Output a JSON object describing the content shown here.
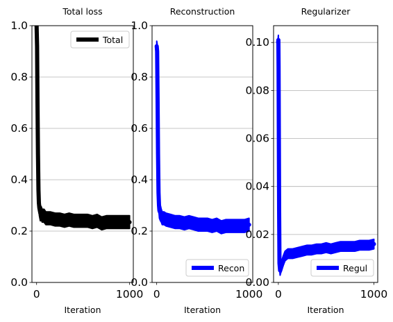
{
  "chart_data": [
    {
      "type": "line",
      "title": "Total loss",
      "xlabel": "Iteration",
      "ylabel": "",
      "xlim": [
        -50,
        1040
      ],
      "ylim": [
        0,
        1.0
      ],
      "xticks": [
        0,
        1000
      ],
      "xtick_labels": [
        "0",
        "1000"
      ],
      "yticks": [
        0.0,
        0.2,
        0.4,
        0.6,
        0.8,
        1.0
      ],
      "ytick_labels": [
        "0.0",
        "0.2",
        "0.4",
        "0.6",
        "0.8",
        "1.0"
      ],
      "grid": "y",
      "legend": "top-right",
      "series": [
        {
          "name": "Total",
          "color": "#000000",
          "x": [
            0,
            5,
            10,
            15,
            20,
            25,
            30,
            40,
            50,
            60,
            80,
            100,
            150,
            200,
            250,
            300,
            350,
            400,
            450,
            500,
            550,
            600,
            650,
            700,
            750,
            800,
            850,
            900,
            950,
            1000
          ],
          "y": [
            1.0,
            0.92,
            0.7,
            0.5,
            0.36,
            0.31,
            0.29,
            0.27,
            0.27,
            0.26,
            0.26,
            0.25,
            0.25,
            0.245,
            0.245,
            0.24,
            0.245,
            0.24,
            0.24,
            0.24,
            0.24,
            0.235,
            0.24,
            0.23,
            0.235,
            0.235,
            0.235,
            0.235,
            0.235,
            0.235
          ],
          "band": [
            0.025,
            0.03,
            0.04,
            0.05,
            0.04,
            0.03,
            0.03,
            0.03,
            0.025,
            0.025,
            0.025,
            0.025,
            0.025,
            0.025,
            0.025,
            0.025,
            0.025,
            0.025,
            0.025,
            0.025,
            0.025,
            0.025,
            0.025,
            0.025,
            0.025,
            0.025,
            0.025,
            0.025,
            0.025,
            0.025
          ]
        }
      ]
    },
    {
      "type": "line",
      "title": "Reconstruction",
      "xlabel": "Iteration",
      "ylabel": "",
      "xlim": [
        -50,
        1040
      ],
      "ylim": [
        0,
        1.0
      ],
      "xticks": [
        0,
        1000
      ],
      "xtick_labels": [
        "0",
        "1000"
      ],
      "yticks": [
        0.0,
        0.2,
        0.4,
        0.6,
        0.8,
        1.0
      ],
      "ytick_labels": [
        "0.0",
        "0.2",
        "0.4",
        "0.6",
        "0.8",
        "1.0"
      ],
      "grid": "y",
      "legend": "bottom-right",
      "series": [
        {
          "name": "Recon",
          "color": "#0000ff",
          "x": [
            0,
            5,
            10,
            15,
            20,
            25,
            30,
            40,
            50,
            60,
            80,
            100,
            150,
            200,
            250,
            300,
            350,
            400,
            450,
            500,
            550,
            600,
            650,
            700,
            750,
            800,
            850,
            900,
            950,
            1000
          ],
          "y": [
            0.92,
            0.9,
            0.7,
            0.5,
            0.35,
            0.3,
            0.28,
            0.27,
            0.26,
            0.25,
            0.25,
            0.245,
            0.24,
            0.235,
            0.235,
            0.23,
            0.235,
            0.23,
            0.225,
            0.225,
            0.225,
            0.22,
            0.225,
            0.215,
            0.22,
            0.22,
            0.22,
            0.22,
            0.22,
            0.225
          ],
          "band": [
            0.02,
            0.03,
            0.04,
            0.05,
            0.04,
            0.03,
            0.03,
            0.03,
            0.025,
            0.025,
            0.025,
            0.025,
            0.025,
            0.025,
            0.025,
            0.025,
            0.025,
            0.025,
            0.025,
            0.025,
            0.025,
            0.025,
            0.025,
            0.025,
            0.025,
            0.025,
            0.025,
            0.025,
            0.025,
            0.025
          ]
        }
      ]
    },
    {
      "type": "line",
      "title": "Regularizer",
      "xlabel": "Iteration",
      "ylabel": "",
      "xlim": [
        -50,
        1040
      ],
      "ylim": [
        0,
        0.107
      ],
      "xticks": [
        0,
        1000
      ],
      "xtick_labels": [
        "0",
        "1000"
      ],
      "yticks": [
        0.0,
        0.02,
        0.04,
        0.06,
        0.08,
        0.1
      ],
      "ytick_labels": [
        "0.00",
        "0.02",
        "0.04",
        "0.06",
        "0.08",
        "0.10"
      ],
      "grid": "y",
      "legend": "bottom-right",
      "series": [
        {
          "name": "Regul",
          "color": "#0000ff",
          "x": [
            -2,
            0,
            2,
            5,
            8,
            12,
            18,
            25,
            35,
            50,
            70,
            100,
            150,
            200,
            250,
            300,
            350,
            400,
            450,
            500,
            550,
            600,
            650,
            700,
            750,
            800,
            850,
            900,
            950,
            1000
          ],
          "y": [
            0.1,
            0.101,
            0.09,
            0.06,
            0.03,
            0.008,
            0.005,
            0.006,
            0.007,
            0.009,
            0.011,
            0.012,
            0.012,
            0.0125,
            0.013,
            0.0135,
            0.0135,
            0.014,
            0.014,
            0.0145,
            0.014,
            0.0145,
            0.015,
            0.015,
            0.015,
            0.015,
            0.0155,
            0.0155,
            0.0155,
            0.016
          ],
          "band": [
            0.002,
            0.002,
            0.005,
            0.006,
            0.004,
            0.002,
            0.002,
            0.002,
            0.002,
            0.002,
            0.002,
            0.002,
            0.002,
            0.002,
            0.002,
            0.002,
            0.002,
            0.002,
            0.002,
            0.002,
            0.002,
            0.002,
            0.002,
            0.002,
            0.002,
            0.002,
            0.002,
            0.002,
            0.002,
            0.002
          ]
        }
      ]
    }
  ]
}
